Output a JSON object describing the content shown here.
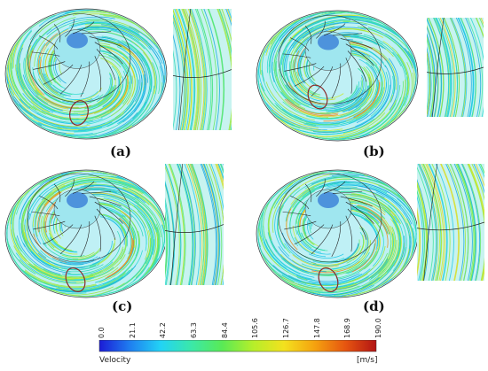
{
  "panels": [
    {
      "label": "(a)"
    },
    {
      "label": "(b)"
    },
    {
      "label": "(c)"
    },
    {
      "label": "(d)"
    }
  ],
  "colorbar": {
    "title": "Velocity",
    "unit": "[m/s]",
    "ticks": [
      "0.0",
      "21.1",
      "42.2",
      "63.3",
      "84.4",
      "105.6",
      "126.7",
      "147.8",
      "168.9",
      "190.0"
    ],
    "colors": [
      "#1b1bd6",
      "#1f7ff0",
      "#22d3f5",
      "#3be8a8",
      "#59ea55",
      "#b6ee2a",
      "#f3e11e",
      "#f5a20f",
      "#e65510",
      "#b21414"
    ]
  }
}
